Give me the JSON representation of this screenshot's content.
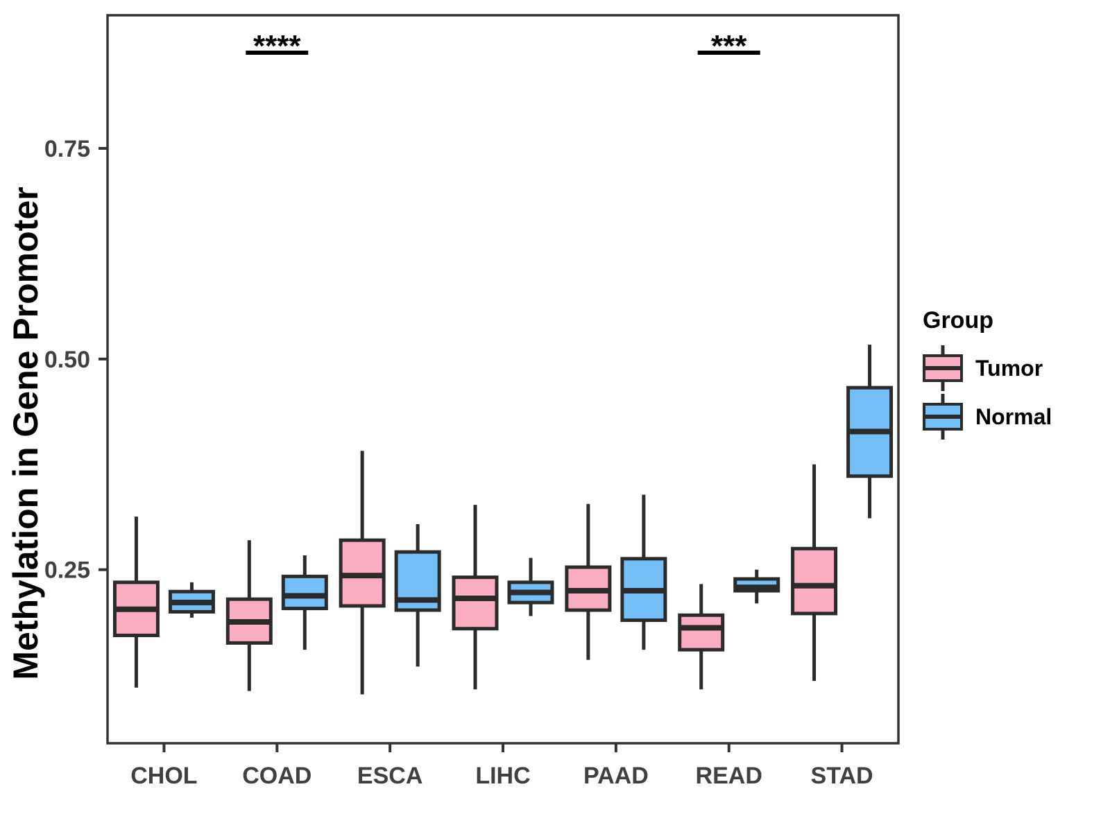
{
  "chart_data": {
    "type": "boxplot",
    "title": "",
    "xlabel": "",
    "ylabel": "Methylation in Gene Promoter",
    "categories": [
      "CHOL",
      "COAD",
      "ESCA",
      "LIHC",
      "PAAD",
      "READ",
      "STAD"
    ],
    "groups": [
      {
        "name": "Tumor",
        "color": "#fbaec1"
      },
      {
        "name": "Normal",
        "color": "#74bff7"
      }
    ],
    "box_format": [
      "whisker_low",
      "q1",
      "median",
      "q3",
      "whisker_high"
    ],
    "series": [
      {
        "group": "Tumor",
        "values": [
          [
            0.11,
            0.172,
            0.203,
            0.235,
            0.313
          ],
          [
            0.106,
            0.163,
            0.188,
            0.215,
            0.285
          ],
          [
            0.102,
            0.207,
            0.243,
            0.285,
            0.391
          ],
          [
            0.108,
            0.18,
            0.216,
            0.241,
            0.327
          ],
          [
            0.143,
            0.202,
            0.225,
            0.253,
            0.328
          ],
          [
            0.108,
            0.155,
            0.181,
            0.196,
            0.233
          ],
          [
            0.118,
            0.198,
            0.231,
            0.275,
            0.375
          ]
        ]
      },
      {
        "group": "Normal",
        "values": [
          [
            0.193,
            0.2,
            0.211,
            0.224,
            0.235
          ],
          [
            0.155,
            0.204,
            0.219,
            0.242,
            0.267
          ],
          [
            0.135,
            0.202,
            0.214,
            0.271,
            0.304
          ],
          [
            0.195,
            0.211,
            0.223,
            0.235,
            0.264
          ],
          [
            0.155,
            0.19,
            0.225,
            0.263,
            0.339
          ],
          [
            0.21,
            0.225,
            0.229,
            0.239,
            0.25
          ],
          [
            0.311,
            0.361,
            0.414,
            0.466,
            0.517
          ]
        ]
      }
    ],
    "yticks": [
      0.25,
      0.5,
      0.75
    ],
    "ytick_labels": [
      "0.25",
      "0.50",
      "0.75"
    ],
    "ylim": [
      0.044,
      0.908
    ],
    "grid": false,
    "legend": {
      "title": "Group",
      "position": "right",
      "entries": [
        "Tumor",
        "Normal"
      ]
    },
    "annotations": [
      {
        "category": "COAD",
        "label": "****"
      },
      {
        "category": "READ",
        "label": "***"
      }
    ],
    "style": {
      "panel_border": "#333333",
      "axis_line": "#333333",
      "axis_text": "#404040",
      "box_stroke": "#2b2b2b",
      "annotation": "#000000",
      "background": "#ffffff"
    }
  }
}
